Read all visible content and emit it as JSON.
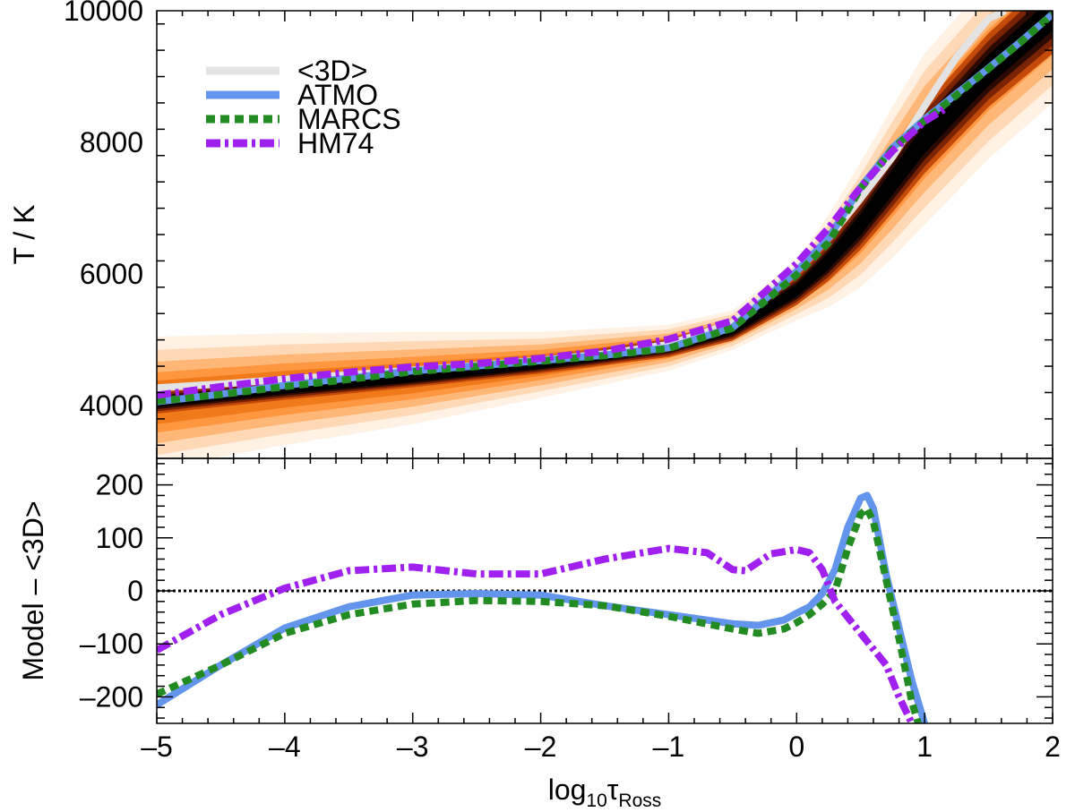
{
  "chart_data": [
    {
      "type": "line",
      "panel": "top",
      "title": "",
      "xlabel": "",
      "ylabel": "T / K",
      "xlim": [
        -5,
        2
      ],
      "ylim": [
        3200,
        10000
      ],
      "yticks": [
        4000,
        6000,
        8000,
        10000
      ],
      "density_band": {
        "name": "3D temperature distribution",
        "x": [
          -5.0,
          -4.0,
          -3.0,
          -2.0,
          -1.0,
          -0.5,
          0.0,
          0.25,
          0.5,
          0.75,
          1.0,
          1.5,
          2.0
        ],
        "center": [
          4050,
          4250,
          4420,
          4620,
          4880,
          5150,
          5750,
          6200,
          6750,
          7400,
          8050,
          9100,
          9950
        ],
        "inner_halfwidth": [
          170,
          160,
          140,
          130,
          140,
          160,
          220,
          300,
          380,
          460,
          520,
          560,
          600
        ],
        "outer_halfwidth": [
          1000,
          850,
          700,
          500,
          350,
          300,
          450,
          700,
          950,
          1150,
          1300,
          1350,
          1350
        ]
      },
      "series": [
        {
          "name": "<3D>",
          "color": "#e3e3e3",
          "style": "solid",
          "x": [
            -5.0,
            -4.5,
            -4.0,
            -3.5,
            -3.0,
            -2.5,
            -2.0,
            -1.5,
            -1.0,
            -0.5,
            0.0,
            0.25,
            0.5,
            0.75,
            1.0,
            1.25,
            1.5,
            1.63
          ],
          "y": [
            4270,
            4330,
            4400,
            4470,
            4540,
            4610,
            4690,
            4790,
            4930,
            5260,
            6080,
            6550,
            7150,
            7780,
            8550,
            9300,
            9880,
            10000
          ]
        },
        {
          "name": "ATMO",
          "color": "#6495ed",
          "style": "solid",
          "x": [
            -5.0,
            -4.5,
            -4.0,
            -3.5,
            -3.0,
            -2.5,
            -2.0,
            -1.5,
            -1.0,
            -0.5,
            0.0,
            0.25,
            0.5,
            0.75,
            1.0,
            1.25,
            1.5,
            1.75,
            2.0
          ],
          "y": [
            4060,
            4175,
            4310,
            4420,
            4530,
            4605,
            4685,
            4770,
            4880,
            5190,
            6040,
            6550,
            7320,
            7920,
            8350,
            8740,
            9130,
            9530,
            9950
          ]
        },
        {
          "name": "MARCS",
          "color": "#228b22",
          "style": "dotted",
          "x": [
            -5.0,
            -4.5,
            -4.0,
            -3.5,
            -3.0,
            -2.5,
            -2.0,
            -1.5,
            -1.0,
            -0.5,
            0.0,
            0.25,
            0.5,
            0.75,
            1.0,
            1.25,
            1.5,
            1.75,
            2.0
          ],
          "y": [
            4070,
            4170,
            4290,
            4400,
            4515,
            4595,
            4675,
            4760,
            4870,
            5180,
            5990,
            6480,
            7300,
            7900,
            8330,
            8720,
            9120,
            9520,
            9950
          ]
        },
        {
          "name": "HM74",
          "color": "#a020f0",
          "style": "dashdot",
          "x": [
            -5.0,
            -4.5,
            -4.0,
            -3.5,
            -3.0,
            -2.5,
            -2.0,
            -1.5,
            -1.0,
            -0.5,
            0.0,
            0.25,
            0.5,
            0.75,
            1.0,
            1.15
          ],
          "y": [
            4160,
            4290,
            4410,
            4510,
            4590,
            4640,
            4720,
            4830,
            5010,
            5290,
            6160,
            6700,
            7320,
            7870,
            8320,
            8500
          ]
        }
      ],
      "legend": {
        "placement": "top-left",
        "entries": [
          "<3D>",
          "ATMO",
          "MARCS",
          "HM74"
        ]
      }
    },
    {
      "type": "line",
      "panel": "bottom",
      "title": "",
      "xlabel": "log10τRoss",
      "ylabel": "Model – <3D>",
      "xlim": [
        -5,
        2
      ],
      "ylim": [
        -250,
        250
      ],
      "xticks": [
        -5,
        -4,
        -3,
        -2,
        -1,
        0,
        1,
        2
      ],
      "xtick_labels": [
        "–5",
        "–4",
        "–3",
        "–2",
        "–1",
        "0",
        "1",
        "2"
      ],
      "yticks": [
        -200,
        -100,
        0,
        100,
        200
      ],
      "ytick_labels": [
        "–200",
        "–100",
        "0",
        "100",
        "200"
      ],
      "reference_line": {
        "y": 0,
        "style": "dotted",
        "color": "#000000"
      },
      "series": [
        {
          "name": "ATMO",
          "color": "#6495ed",
          "style": "solid",
          "x": [
            -5.0,
            -4.5,
            -4.0,
            -3.5,
            -3.0,
            -2.5,
            -2.0,
            -1.5,
            -1.0,
            -0.5,
            -0.3,
            -0.1,
            0.0,
            0.1,
            0.2,
            0.3,
            0.4,
            0.5,
            0.55,
            0.6,
            0.7,
            0.8,
            0.9,
            1.0
          ],
          "y": [
            -215,
            -140,
            -70,
            -30,
            -8,
            -5,
            -8,
            -28,
            -45,
            -62,
            -65,
            -55,
            -42,
            -30,
            -5,
            40,
            120,
            175,
            180,
            155,
            30,
            -70,
            -170,
            -250
          ]
        },
        {
          "name": "MARCS",
          "color": "#228b22",
          "style": "dotted",
          "x": [
            -5.0,
            -4.5,
            -4.0,
            -3.5,
            -3.0,
            -2.5,
            -2.0,
            -1.5,
            -1.0,
            -0.5,
            -0.3,
            -0.1,
            0.0,
            0.1,
            0.2,
            0.3,
            0.4,
            0.5,
            0.55,
            0.6,
            0.7,
            0.8,
            0.9,
            0.95
          ],
          "y": [
            -195,
            -140,
            -80,
            -45,
            -25,
            -18,
            -20,
            -28,
            -48,
            -72,
            -80,
            -72,
            -60,
            -45,
            -25,
            0,
            80,
            145,
            155,
            130,
            20,
            -90,
            -210,
            -250
          ]
        },
        {
          "name": "HM74",
          "color": "#a020f0",
          "style": "dashdot",
          "x": [
            -5.0,
            -4.5,
            -4.0,
            -3.5,
            -3.0,
            -2.5,
            -2.0,
            -1.5,
            -1.0,
            -0.7,
            -0.5,
            -0.4,
            -0.2,
            0.0,
            0.1,
            0.2,
            0.3,
            0.5,
            0.7,
            0.8,
            0.9
          ],
          "y": [
            -112,
            -45,
            5,
            38,
            45,
            32,
            32,
            60,
            80,
            72,
            40,
            38,
            70,
            78,
            72,
            40,
            -20,
            -80,
            -140,
            -200,
            -250
          ]
        }
      ]
    }
  ]
}
